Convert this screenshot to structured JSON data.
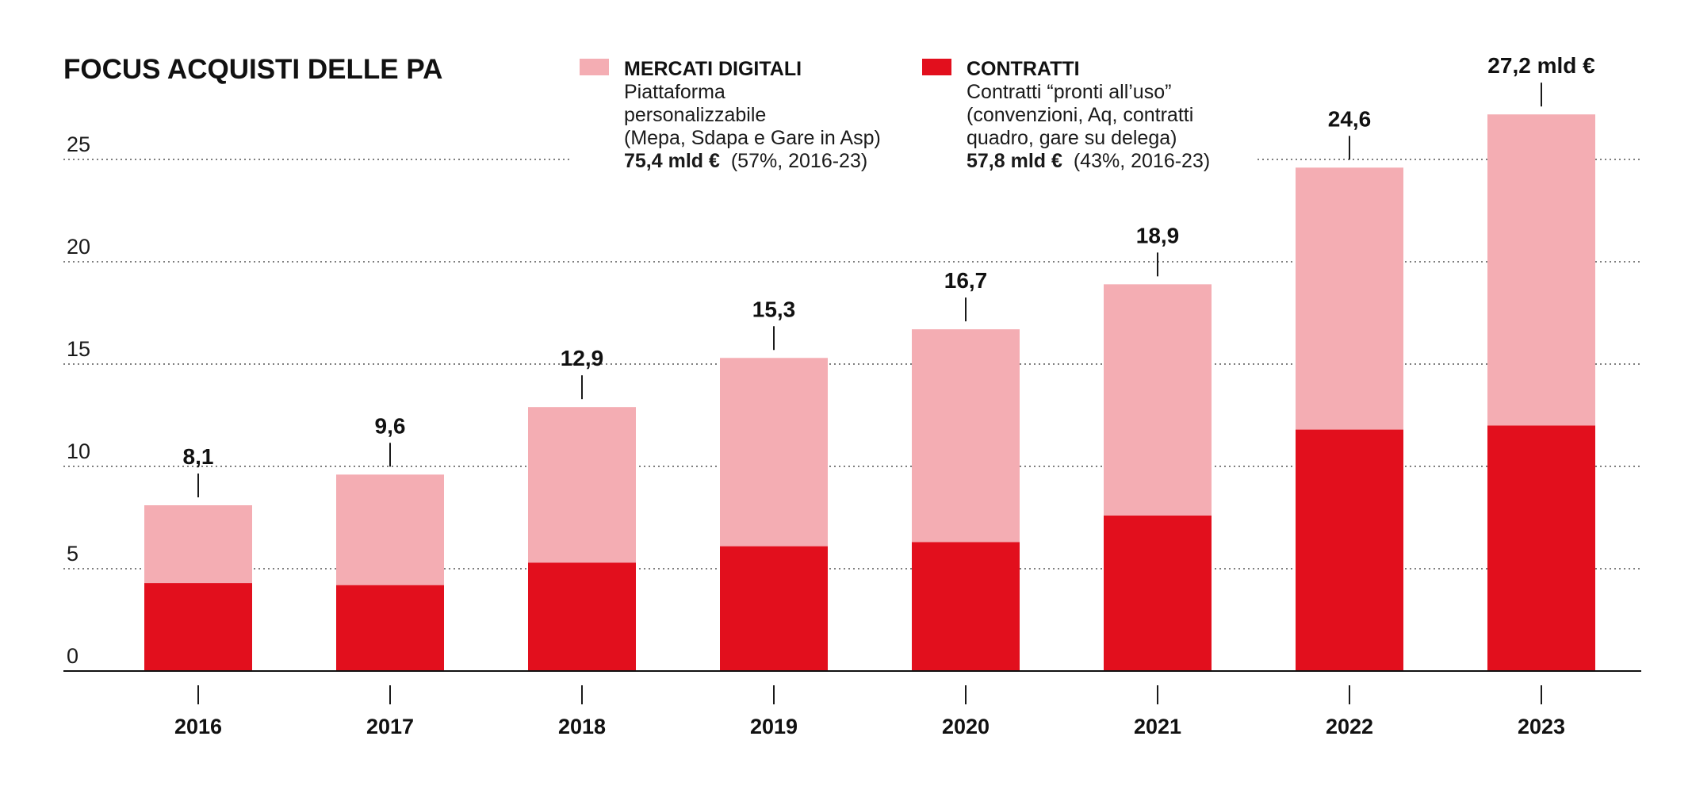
{
  "chart_data": {
    "type": "bar",
    "stacked": true,
    "title": "FOCUS ACQUISTI DELLE PA",
    "categories": [
      "2016",
      "2017",
      "2018",
      "2019",
      "2020",
      "2021",
      "2022",
      "2023"
    ],
    "series": [
      {
        "name": "CONTRATTI",
        "color": "#e20f1d",
        "values": [
          4.3,
          4.2,
          5.3,
          6.1,
          6.3,
          7.6,
          11.8,
          12.0
        ]
      },
      {
        "name": "MERCATI DIGITALI",
        "color": "#f4adb3",
        "values": [
          3.8,
          5.4,
          7.6,
          9.2,
          10.4,
          11.3,
          12.8,
          15.2
        ]
      }
    ],
    "totals": [
      8.1,
      9.6,
      12.9,
      15.3,
      16.7,
      18.9,
      24.6,
      27.2
    ],
    "total_labels": [
      "8,1",
      "9,6",
      "12,9",
      "15,3",
      "16,7",
      "18,9",
      "24,6",
      "27,2 mld €"
    ],
    "ylim": [
      0,
      27.2
    ],
    "yticks": [
      0,
      5,
      10,
      15,
      20,
      25
    ],
    "grid": true,
    "xlabel": "",
    "ylabel": ""
  },
  "legend": {
    "mercati": {
      "name": "MERCATI DIGITALI",
      "line1": "Piattaforma",
      "line2": "personalizzabile",
      "line3": "(Mepa, Sdapa e Gare in Asp)",
      "amount": "75,4 mld €",
      "share": "(57%, 2016-23)"
    },
    "contratti": {
      "name": "CONTRATTI",
      "line1": "Contratti “pronti all’uso”",
      "line2": "(convenzioni, Aq, contratti",
      "line3": "quadro, gare su delega)",
      "amount": "57,8 mld €",
      "share": "(43%, 2016-23)"
    }
  }
}
